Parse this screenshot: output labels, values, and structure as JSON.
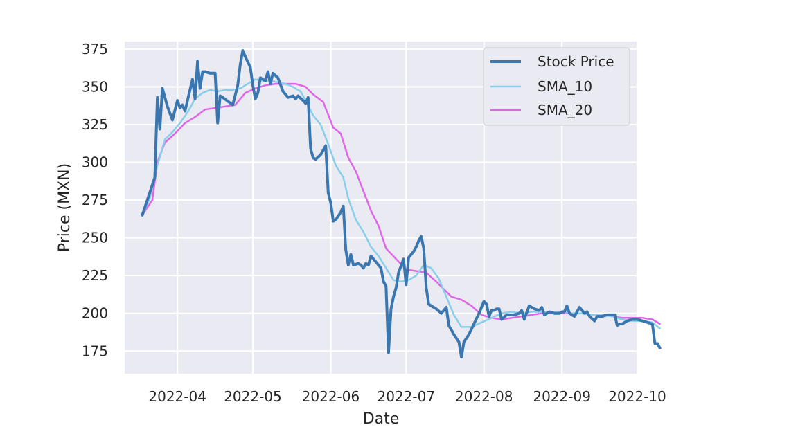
{
  "chart_data": {
    "type": "line",
    "title": "",
    "xlabel": "Date",
    "ylabel": "Price (MXN)",
    "x_ticks": [
      "2022-04",
      "2022-05",
      "2022-06",
      "2022-07",
      "2022-08",
      "2022-09",
      "2022-10"
    ],
    "y_ticks": [
      175,
      200,
      225,
      250,
      275,
      300,
      325,
      350,
      375
    ],
    "xlim": [
      "2022-03-11",
      "2022-10-01"
    ],
    "ylim": [
      160,
      380
    ],
    "grid": true,
    "legend_position": "top-right",
    "series": [
      {
        "name": "Stock Price",
        "color": "#3A76AF",
        "points": [
          [
            "2022-03-18",
            265
          ],
          [
            "2022-03-22",
            285
          ],
          [
            "2022-03-23",
            290
          ],
          [
            "2022-03-24",
            343
          ],
          [
            "2022-03-25",
            322
          ],
          [
            "2022-03-26",
            349
          ],
          [
            "2022-03-28",
            337
          ],
          [
            "2022-03-30",
            328
          ],
          [
            "2022-04-01",
            341
          ],
          [
            "2022-04-02",
            336
          ],
          [
            "2022-04-03",
            338
          ],
          [
            "2022-04-04",
            334
          ],
          [
            "2022-04-07",
            355
          ],
          [
            "2022-04-08",
            342
          ],
          [
            "2022-04-09",
            367
          ],
          [
            "2022-04-10",
            349
          ],
          [
            "2022-04-11",
            360
          ],
          [
            "2022-04-12",
            360
          ],
          [
            "2022-04-14",
            359
          ],
          [
            "2022-04-16",
            359
          ],
          [
            "2022-04-17",
            326
          ],
          [
            "2022-04-18",
            344
          ],
          [
            "2022-04-19",
            343
          ],
          [
            "2022-04-23",
            338
          ],
          [
            "2022-04-25",
            351
          ],
          [
            "2022-04-26",
            365
          ],
          [
            "2022-04-27",
            374
          ],
          [
            "2022-04-28",
            370
          ],
          [
            "2022-04-30",
            363
          ],
          [
            "2022-05-01",
            351
          ],
          [
            "2022-05-02",
            342
          ],
          [
            "2022-05-03",
            346
          ],
          [
            "2022-05-04",
            356
          ],
          [
            "2022-05-06",
            354
          ],
          [
            "2022-05-07",
            360
          ],
          [
            "2022-05-08",
            352
          ],
          [
            "2022-05-09",
            359
          ],
          [
            "2022-05-11",
            356
          ],
          [
            "2022-05-13",
            347
          ],
          [
            "2022-05-15",
            343
          ],
          [
            "2022-05-17",
            344
          ],
          [
            "2022-05-18",
            342
          ],
          [
            "2022-05-19",
            344
          ],
          [
            "2022-05-21",
            341
          ],
          [
            "2022-05-22",
            339
          ],
          [
            "2022-05-23",
            343
          ],
          [
            "2022-05-24",
            309
          ],
          [
            "2022-05-25",
            303
          ],
          [
            "2022-05-26",
            302
          ],
          [
            "2022-05-28",
            305
          ],
          [
            "2022-05-30",
            311
          ],
          [
            "2022-05-31",
            280
          ],
          [
            "2022-06-01",
            273
          ],
          [
            "2022-06-02",
            261
          ],
          [
            "2022-06-03",
            262
          ],
          [
            "2022-06-05",
            267
          ],
          [
            "2022-06-06",
            271
          ],
          [
            "2022-06-07",
            242
          ],
          [
            "2022-06-08",
            232
          ],
          [
            "2022-06-09",
            239
          ],
          [
            "2022-06-10",
            232
          ],
          [
            "2022-06-12",
            233
          ],
          [
            "2022-06-13",
            232
          ],
          [
            "2022-06-14",
            230
          ],
          [
            "2022-06-15",
            233
          ],
          [
            "2022-06-16",
            232
          ],
          [
            "2022-06-17",
            238
          ],
          [
            "2022-06-19",
            234
          ],
          [
            "2022-06-21",
            230
          ],
          [
            "2022-06-22",
            221
          ],
          [
            "2022-06-23",
            218
          ],
          [
            "2022-06-24",
            174
          ],
          [
            "2022-06-25",
            203
          ],
          [
            "2022-06-26",
            211
          ],
          [
            "2022-06-27",
            217
          ],
          [
            "2022-06-28",
            227
          ],
          [
            "2022-06-30",
            236
          ],
          [
            "2022-07-01",
            219
          ],
          [
            "2022-07-02",
            237
          ],
          [
            "2022-07-04",
            241
          ],
          [
            "2022-07-05",
            244
          ],
          [
            "2022-07-06",
            248
          ],
          [
            "2022-07-07",
            251
          ],
          [
            "2022-07-08",
            243
          ],
          [
            "2022-07-09",
            217
          ],
          [
            "2022-07-10",
            206
          ],
          [
            "2022-07-11",
            205
          ],
          [
            "2022-07-13",
            203
          ],
          [
            "2022-07-15",
            200
          ],
          [
            "2022-07-17",
            204
          ],
          [
            "2022-07-18",
            192
          ],
          [
            "2022-07-20",
            186
          ],
          [
            "2022-07-22",
            181
          ],
          [
            "2022-07-23",
            171
          ],
          [
            "2022-07-24",
            181
          ],
          [
            "2022-07-26",
            186
          ],
          [
            "2022-07-28",
            193
          ],
          [
            "2022-07-30",
            200
          ],
          [
            "2022-08-01",
            208
          ],
          [
            "2022-08-02",
            206
          ],
          [
            "2022-08-03",
            198
          ],
          [
            "2022-08-04",
            202
          ],
          [
            "2022-08-05",
            202
          ],
          [
            "2022-08-06",
            203
          ],
          [
            "2022-08-07",
            203
          ],
          [
            "2022-08-08",
            196
          ],
          [
            "2022-08-10",
            199
          ],
          [
            "2022-08-12",
            199
          ],
          [
            "2022-08-13",
            199
          ],
          [
            "2022-08-15",
            200
          ],
          [
            "2022-08-16",
            202
          ],
          [
            "2022-08-17",
            196
          ],
          [
            "2022-08-19",
            205
          ],
          [
            "2022-08-21",
            203
          ],
          [
            "2022-08-23",
            202
          ],
          [
            "2022-08-24",
            204
          ],
          [
            "2022-08-25",
            199
          ],
          [
            "2022-08-27",
            201
          ],
          [
            "2022-08-29",
            200
          ],
          [
            "2022-08-31",
            200
          ],
          [
            "2022-09-01",
            201
          ],
          [
            "2022-09-02",
            201
          ],
          [
            "2022-09-03",
            205
          ],
          [
            "2022-09-04",
            200
          ],
          [
            "2022-09-06",
            198
          ],
          [
            "2022-09-08",
            204
          ],
          [
            "2022-09-10",
            200
          ],
          [
            "2022-09-11",
            201
          ],
          [
            "2022-09-12",
            198
          ],
          [
            "2022-09-14",
            195
          ],
          [
            "2022-09-15",
            198
          ],
          [
            "2022-09-17",
            198
          ],
          [
            "2022-09-19",
            199
          ],
          [
            "2022-09-20",
            199
          ],
          [
            "2022-09-22",
            199
          ],
          [
            "2022-09-23",
            192
          ],
          [
            "2022-09-24",
            193
          ],
          [
            "2022-09-25",
            193
          ],
          [
            "2022-09-27",
            195
          ],
          [
            "2022-09-29",
            196
          ],
          [
            "2022-10-01",
            196
          ],
          [
            "2022-10-03",
            195
          ],
          [
            "2022-10-05",
            194
          ],
          [
            "2022-10-07",
            193
          ],
          [
            "2022-10-08",
            180
          ],
          [
            "2022-10-09",
            180
          ],
          [
            "2022-10-10",
            177
          ]
        ]
      },
      {
        "name": "SMA_10",
        "color": "#87CEEB",
        "points": [
          [
            "2022-03-18",
            265
          ],
          [
            "2022-03-21",
            276
          ],
          [
            "2022-03-24",
            298
          ],
          [
            "2022-03-27",
            315
          ],
          [
            "2022-03-30",
            320
          ],
          [
            "2022-04-02",
            326
          ],
          [
            "2022-04-05",
            333
          ],
          [
            "2022-04-08",
            342
          ],
          [
            "2022-04-11",
            346
          ],
          [
            "2022-04-14",
            348
          ],
          [
            "2022-04-17",
            347
          ],
          [
            "2022-04-20",
            348
          ],
          [
            "2022-04-23",
            348
          ],
          [
            "2022-04-26",
            349
          ],
          [
            "2022-04-29",
            352
          ],
          [
            "2022-05-02",
            355
          ],
          [
            "2022-05-05",
            354
          ],
          [
            "2022-05-08",
            354
          ],
          [
            "2022-05-11",
            353
          ],
          [
            "2022-05-14",
            352
          ],
          [
            "2022-05-17",
            350
          ],
          [
            "2022-05-20",
            347
          ],
          [
            "2022-05-22",
            341
          ],
          [
            "2022-05-25",
            331
          ],
          [
            "2022-05-28",
            325
          ],
          [
            "2022-05-31",
            312
          ],
          [
            "2022-06-03",
            298
          ],
          [
            "2022-06-06",
            290
          ],
          [
            "2022-06-08",
            276
          ],
          [
            "2022-06-11",
            262
          ],
          [
            "2022-06-14",
            254
          ],
          [
            "2022-06-17",
            244
          ],
          [
            "2022-06-20",
            238
          ],
          [
            "2022-06-23",
            230
          ],
          [
            "2022-06-26",
            222
          ],
          [
            "2022-06-29",
            221
          ],
          [
            "2022-07-02",
            222
          ],
          [
            "2022-07-05",
            225
          ],
          [
            "2022-07-08",
            232
          ],
          [
            "2022-07-11",
            230
          ],
          [
            "2022-07-14",
            223
          ],
          [
            "2022-07-17",
            211
          ],
          [
            "2022-07-20",
            199
          ],
          [
            "2022-07-23",
            191
          ],
          [
            "2022-07-27",
            191
          ],
          [
            "2022-07-31",
            194
          ],
          [
            "2022-08-04",
            197
          ],
          [
            "2022-08-08",
            200
          ],
          [
            "2022-08-12",
            201
          ],
          [
            "2022-08-16",
            200
          ],
          [
            "2022-08-20",
            201
          ],
          [
            "2022-08-24",
            201
          ],
          [
            "2022-08-28",
            201
          ],
          [
            "2022-09-01",
            201
          ],
          [
            "2022-09-05",
            200
          ],
          [
            "2022-09-09",
            200
          ],
          [
            "2022-09-13",
            199
          ],
          [
            "2022-09-17",
            199
          ],
          [
            "2022-09-21",
            198
          ],
          [
            "2022-09-25",
            196
          ],
          [
            "2022-09-29",
            195
          ],
          [
            "2022-10-03",
            195
          ],
          [
            "2022-10-07",
            194
          ],
          [
            "2022-10-10",
            190
          ]
        ]
      },
      {
        "name": "SMA_20",
        "color": "#E066E8",
        "points": [
          [
            "2022-03-18",
            265
          ],
          [
            "2022-03-22",
            275
          ],
          [
            "2022-03-24",
            300
          ],
          [
            "2022-03-27",
            313
          ],
          [
            "2022-03-31",
            319
          ],
          [
            "2022-04-04",
            326
          ],
          [
            "2022-04-08",
            330
          ],
          [
            "2022-04-12",
            335
          ],
          [
            "2022-04-16",
            336
          ],
          [
            "2022-04-20",
            337
          ],
          [
            "2022-04-24",
            338
          ],
          [
            "2022-04-28",
            346
          ],
          [
            "2022-05-02",
            349
          ],
          [
            "2022-05-06",
            351
          ],
          [
            "2022-05-10",
            352
          ],
          [
            "2022-05-14",
            352
          ],
          [
            "2022-05-18",
            352
          ],
          [
            "2022-05-22",
            350
          ],
          [
            "2022-05-25",
            345
          ],
          [
            "2022-05-29",
            340
          ],
          [
            "2022-06-02",
            323
          ],
          [
            "2022-06-05",
            319
          ],
          [
            "2022-06-08",
            303
          ],
          [
            "2022-06-11",
            294
          ],
          [
            "2022-06-14",
            281
          ],
          [
            "2022-06-17",
            268
          ],
          [
            "2022-06-20",
            258
          ],
          [
            "2022-06-23",
            243
          ],
          [
            "2022-06-27",
            236
          ],
          [
            "2022-07-01",
            229
          ],
          [
            "2022-07-05",
            228
          ],
          [
            "2022-07-09",
            227
          ],
          [
            "2022-07-13",
            221
          ],
          [
            "2022-07-16",
            216
          ],
          [
            "2022-07-19",
            211
          ],
          [
            "2022-07-23",
            209
          ],
          [
            "2022-07-27",
            205
          ],
          [
            "2022-07-31",
            199
          ],
          [
            "2022-08-04",
            197
          ],
          [
            "2022-08-08",
            196
          ],
          [
            "2022-08-12",
            197
          ],
          [
            "2022-08-16",
            198
          ],
          [
            "2022-08-20",
            199
          ],
          [
            "2022-08-24",
            200
          ],
          [
            "2022-08-28",
            200
          ],
          [
            "2022-09-01",
            200
          ],
          [
            "2022-09-05",
            200
          ],
          [
            "2022-09-09",
            200
          ],
          [
            "2022-09-13",
            199
          ],
          [
            "2022-09-17",
            199
          ],
          [
            "2022-09-21",
            198
          ],
          [
            "2022-09-25",
            197
          ],
          [
            "2022-09-29",
            197
          ],
          [
            "2022-10-03",
            197
          ],
          [
            "2022-10-07",
            196
          ],
          [
            "2022-10-10",
            193
          ]
        ]
      }
    ]
  }
}
